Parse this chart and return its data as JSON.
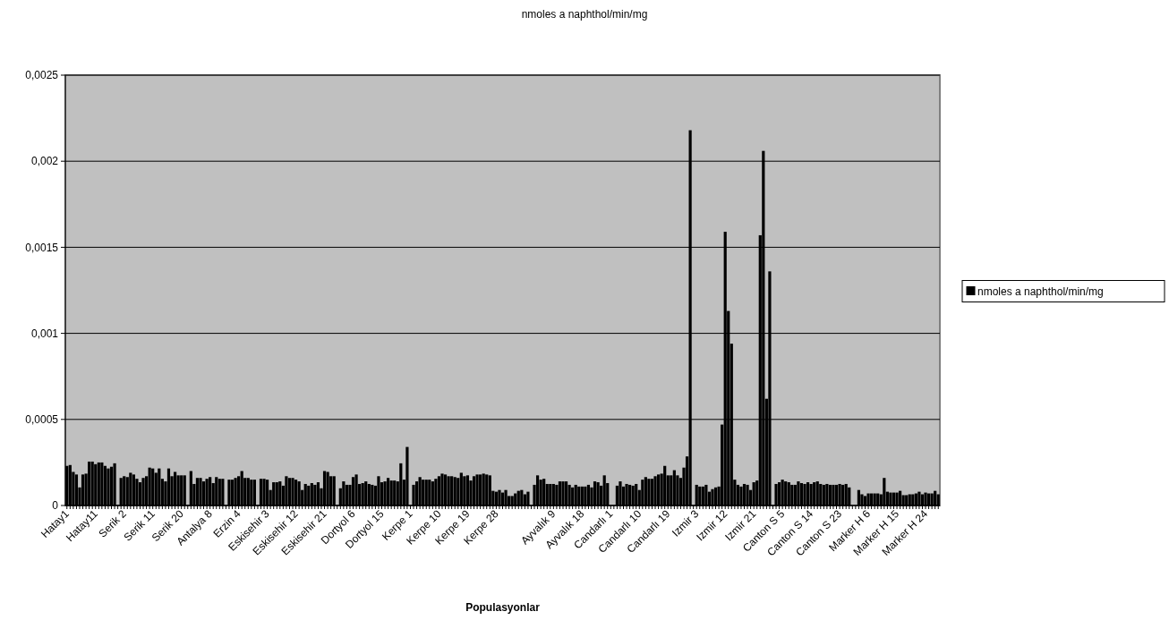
{
  "chart_data": {
    "type": "bar",
    "title": "nmoles a naphthol/min/mg",
    "xlabel": "Populasyonlar",
    "categories": [
      "Hatay1",
      null,
      null,
      null,
      null,
      null,
      null,
      null,
      null,
      "Hatay11",
      null,
      null,
      null,
      null,
      null,
      null,
      null,
      null,
      "Serik 2",
      null,
      null,
      null,
      null,
      null,
      null,
      null,
      null,
      "Serik 11",
      null,
      null,
      null,
      null,
      null,
      null,
      null,
      null,
      "Serik 20",
      null,
      null,
      null,
      null,
      null,
      null,
      null,
      null,
      "Antalya 8",
      null,
      null,
      null,
      null,
      null,
      null,
      null,
      null,
      "Erzin 4",
      null,
      null,
      null,
      null,
      null,
      null,
      null,
      null,
      "Eskisehir 3",
      null,
      null,
      null,
      null,
      null,
      null,
      null,
      null,
      "Eskisehir 12",
      null,
      null,
      null,
      null,
      null,
      null,
      null,
      null,
      "Eskisehir 21",
      null,
      null,
      null,
      null,
      null,
      null,
      null,
      null,
      "Dortyol 6",
      null,
      null,
      null,
      null,
      null,
      null,
      null,
      null,
      "Dortyol 15",
      null,
      null,
      null,
      null,
      null,
      null,
      null,
      null,
      "Kerpe 1",
      null,
      null,
      null,
      null,
      null,
      null,
      null,
      null,
      "Kerpe 10",
      null,
      null,
      null,
      null,
      null,
      null,
      null,
      null,
      "Kerpe 19",
      null,
      null,
      null,
      null,
      null,
      null,
      null,
      null,
      "Kerpe 28",
      null,
      null,
      null,
      null,
      null,
      null,
      null,
      null,
      null,
      null,
      null,
      null,
      null,
      null,
      null,
      null,
      null,
      "Ayvalık 9",
      null,
      null,
      null,
      null,
      null,
      null,
      null,
      null,
      "Ayvalık 18",
      null,
      null,
      null,
      null,
      null,
      null,
      null,
      null,
      "Candarlı 1",
      null,
      null,
      null,
      null,
      null,
      null,
      null,
      null,
      "Candarlı 10",
      null,
      null,
      null,
      null,
      null,
      null,
      null,
      null,
      "Candarlı 19",
      null,
      null,
      null,
      null,
      null,
      null,
      null,
      null,
      "Izmir 3",
      null,
      null,
      null,
      null,
      null,
      null,
      null,
      null,
      "Izmir 12",
      null,
      null,
      null,
      null,
      null,
      null,
      null,
      null,
      "Izmir 21",
      null,
      null,
      null,
      null,
      null,
      null,
      null,
      null,
      "Canton S 5",
      null,
      null,
      null,
      null,
      null,
      null,
      null,
      null,
      "Canton S 14",
      null,
      null,
      null,
      null,
      null,
      null,
      null,
      null,
      "Canton S 23",
      null,
      null,
      null,
      null,
      null,
      null,
      null,
      null,
      "Marker H 6",
      null,
      null,
      null,
      null,
      null,
      null,
      null,
      null,
      "Marker H 15",
      null,
      null,
      null,
      null,
      null,
      null,
      null,
      null,
      "Marker H 24",
      null,
      null,
      null,
      null
    ],
    "series": [
      {
        "name": "nmoles a naphthol/min/mg",
        "color": "#000000",
        "values": [
          0.00023,
          0.000235,
          0.000195,
          0.00018,
          0.000105,
          0.00018,
          0.000185,
          0.000255,
          0.000255,
          0.00024,
          0.00025,
          0.00025,
          0.00023,
          0.000215,
          0.000225,
          0.000245,
          null,
          0.00016,
          0.00017,
          0.000165,
          0.00019,
          0.00018,
          0.000155,
          0.000135,
          0.00016,
          0.00017,
          0.00022,
          0.000215,
          0.00019,
          0.000215,
          0.000155,
          0.00014,
          0.000215,
          0.00017,
          0.000195,
          0.000175,
          0.000175,
          0.000175,
          null,
          0.0002,
          0.000125,
          0.00016,
          0.00016,
          0.00014,
          0.000155,
          0.000165,
          0.00013,
          0.000165,
          0.000155,
          0.000155,
          null,
          0.00015,
          0.00015,
          0.00016,
          0.00017,
          0.0002,
          0.00016,
          0.00016,
          0.00015,
          0.00015,
          null,
          0.000155,
          0.000155,
          0.00015,
          9e-05,
          0.000135,
          0.000135,
          0.00014,
          0.000115,
          0.00017,
          0.00016,
          0.00016,
          0.00015,
          0.00014,
          9e-05,
          0.000125,
          0.000115,
          0.00013,
          0.00012,
          0.000135,
          0.0001,
          0.0002,
          0.000195,
          0.00017,
          0.00017,
          null,
          0.0001,
          0.00014,
          0.00012,
          0.00012,
          0.000165,
          0.00018,
          0.000125,
          0.00013,
          0.00014,
          0.000125,
          0.00012,
          0.000115,
          0.00017,
          0.000135,
          0.00014,
          0.00016,
          0.000145,
          0.000145,
          0.00014,
          0.000245,
          0.00015,
          0.00034,
          null,
          0.00012,
          0.00014,
          0.000165,
          0.00015,
          0.00015,
          0.00015,
          0.00014,
          0.000155,
          0.00017,
          0.000185,
          0.00018,
          0.00017,
          0.00017,
          0.000165,
          0.00016,
          0.00019,
          0.00017,
          0.000175,
          0.000145,
          0.00017,
          0.00018,
          0.00018,
          0.000185,
          0.00018,
          0.000175,
          8.5e-05,
          8e-05,
          9e-05,
          7.5e-05,
          9e-05,
          5.5e-05,
          5.5e-05,
          7e-05,
          8.5e-05,
          9e-05,
          6.5e-05,
          8e-05,
          null,
          0.00012,
          0.000175,
          0.00015,
          0.000155,
          0.000125,
          0.000125,
          0.000125,
          0.00012,
          0.00014,
          0.00014,
          0.00014,
          0.00012,
          0.000105,
          0.00012,
          0.00011,
          0.00011,
          0.00011,
          0.00012,
          0.000105,
          0.00014,
          0.000135,
          0.000115,
          0.000175,
          0.00013,
          null,
          null,
          0.000115,
          0.00014,
          0.00011,
          0.000125,
          0.00012,
          0.000115,
          0.000125,
          9e-05,
          0.00015,
          0.000165,
          0.000155,
          0.000155,
          0.00017,
          0.00018,
          0.000185,
          0.00023,
          0.000175,
          0.000175,
          0.000205,
          0.000175,
          0.00016,
          0.00022,
          0.000285,
          0.00218,
          null,
          0.00012,
          0.00011,
          0.00011,
          0.00012,
          8e-05,
          9.5e-05,
          0.000105,
          0.00011,
          0.00047,
          0.00159,
          0.00113,
          0.00094,
          0.00015,
          0.00012,
          0.00011,
          0.000125,
          0.00012,
          9e-05,
          0.000135,
          0.000145,
          0.00157,
          0.00206,
          0.00062,
          0.00136,
          null,
          0.000125,
          0.000135,
          0.00015,
          0.00014,
          0.000135,
          0.00012,
          0.00012,
          0.00014,
          0.00013,
          0.000125,
          0.000135,
          0.000125,
          0.000135,
          0.00014,
          0.000125,
          0.00012,
          0.000125,
          0.00012,
          0.00012,
          0.00012,
          0.000125,
          0.00012,
          0.000125,
          0.000105,
          null,
          null,
          9e-05,
          6.5e-05,
          5.5e-05,
          7e-05,
          7e-05,
          7e-05,
          7e-05,
          6.5e-05,
          0.00016,
          8e-05,
          7.5e-05,
          7.5e-05,
          7.5e-05,
          8.5e-05,
          6e-05,
          6e-05,
          6.5e-05,
          6.5e-05,
          7e-05,
          8e-05,
          6.5e-05,
          7.5e-05,
          7e-05,
          7e-05,
          8.5e-05,
          6.5e-05
        ]
      }
    ],
    "ylim": [
      0,
      0.0025
    ],
    "yticks": [
      0,
      {
        "value": 0.0005,
        "label": "0,0005"
      },
      {
        "value": 0.001,
        "label": "0,001"
      },
      {
        "value": 0.0015,
        "label": "0,0015"
      },
      {
        "value": 0.002,
        "label": "0,002"
      },
      {
        "value": 0.0025,
        "label": "0,0025"
      }
    ],
    "grid": "y",
    "legend": "right"
  }
}
